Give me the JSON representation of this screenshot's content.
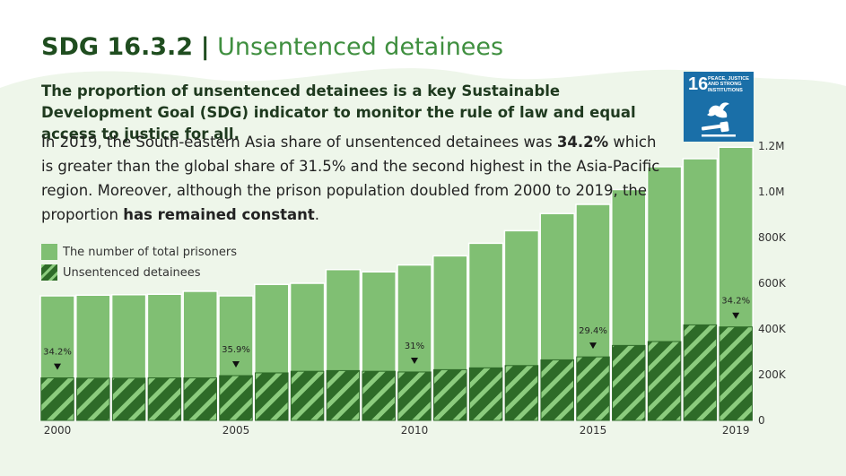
{
  "header": {
    "code": "SDG 16.3.2",
    "separator": "|",
    "name": "Unsentenced detainees"
  },
  "lead": "The proportion of unsentenced detainees is a key Sustainable Development Goal (SDG) indicator to monitor the rule of law and equal access to justice for all.",
  "body": {
    "p1": "In 2019, the South-eastern Asia share of unsentenced detainees was ",
    "p1_strong": "34.2%",
    "p2": " which is greater than the global share of 31.5% and the second highest in the Asia-Pacific region. Moreover, although the prison population doubled from 2000 to 2019, the proportion ",
    "p2_strong": "has remained constant",
    "p3": "."
  },
  "sdg_badge": {
    "number": "16",
    "label": "PEACE, JUSTICE AND STRONG INSTITUTIONS",
    "icon": "dove-gavel-icon",
    "color": "#1a6fa8"
  },
  "colors": {
    "total": "#80bf73",
    "unsentenced": "#2e6b28",
    "stripe": "#8ccc7e",
    "bar_edge": "#ffffff"
  },
  "chart_data": {
    "type": "bar",
    "categories": [
      "2000",
      "2001",
      "2002",
      "2003",
      "2004",
      "2005",
      "2006",
      "2007",
      "2008",
      "2009",
      "2010",
      "2011",
      "2012",
      "2013",
      "2014",
      "2015",
      "2016",
      "2017",
      "2018",
      "2019"
    ],
    "series": [
      {
        "name": "The number of total prisoners",
        "values": [
          545000,
          548000,
          550000,
          552000,
          565000,
          545000,
          595000,
          600000,
          660000,
          650000,
          680000,
          720000,
          775000,
          830000,
          905000,
          945000,
          1010000,
          1110000,
          1145000,
          1195000
        ]
      },
      {
        "name": "Unsentenced detainees",
        "values": [
          186000,
          185000,
          185000,
          186000,
          186000,
          196000,
          208000,
          215000,
          218000,
          215000,
          212000,
          222000,
          230000,
          240000,
          265000,
          278000,
          328000,
          345000,
          418000,
          409000
        ]
      }
    ],
    "y_ticks": [
      {
        "value": 0,
        "label": "0"
      },
      {
        "value": 200000,
        "label": "200K"
      },
      {
        "value": 400000,
        "label": "400K"
      },
      {
        "value": 600000,
        "label": "600K"
      },
      {
        "value": 800000,
        "label": "800K"
      },
      {
        "value": 1000000,
        "label": "1.0M"
      },
      {
        "value": 1200000,
        "label": "1.2M"
      }
    ],
    "x_tick_labels": [
      {
        "category": "2000",
        "label": "2000"
      },
      {
        "category": "2005",
        "label": "2005"
      },
      {
        "category": "2010",
        "label": "2010"
      },
      {
        "category": "2015",
        "label": "2015"
      },
      {
        "category": "2019",
        "label": "2019"
      }
    ],
    "annotations": [
      {
        "category": "2000",
        "label": "34.2%"
      },
      {
        "category": "2005",
        "label": "35.9%"
      },
      {
        "category": "2010",
        "label": "31%"
      },
      {
        "category": "2015",
        "label": "29.4%"
      },
      {
        "category": "2019",
        "label": "34.2%"
      }
    ],
    "ylim": [
      0,
      1200000
    ],
    "y_axis_side": "right",
    "legend_position": "top-left",
    "grid": false
  }
}
